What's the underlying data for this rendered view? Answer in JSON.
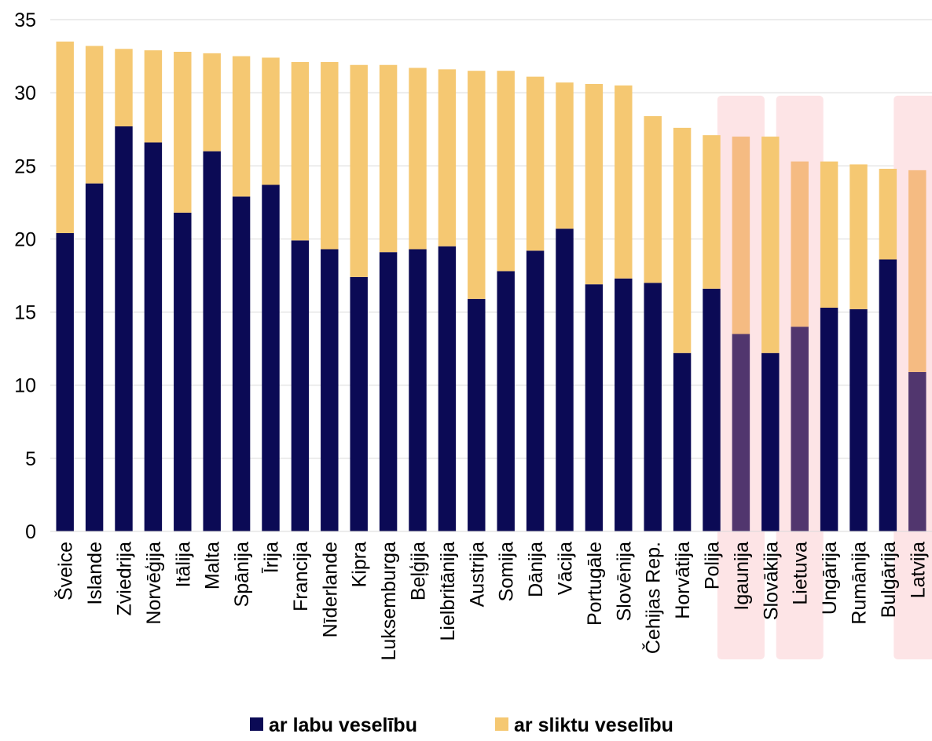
{
  "chart_data": {
    "type": "bar",
    "stacked": true,
    "title": "",
    "xlabel": "",
    "ylabel": "",
    "ylim": [
      0,
      35
    ],
    "yticks": [
      0,
      5,
      10,
      15,
      20,
      25,
      30,
      35
    ],
    "grid": "horizontal",
    "legend_position": "bottom",
    "categories": [
      "Šveice",
      "Islande",
      "Zviedrija",
      "Norvēģija",
      "Itālija",
      "Malta",
      "Spānija",
      "Īrija",
      "Francija",
      "Nīderlande",
      "Kipra",
      "Luksemburga",
      "Beļģija",
      "Lielbritānija",
      "Austrija",
      "Somija",
      "Dānija",
      "Vācija",
      "Portugāle",
      "Slovēnija",
      "Čehijas Rep.",
      "Horvātija",
      "Polija",
      "Igaunija",
      "Slovākija",
      "Lietuva",
      "Ungārija",
      "Rumānija",
      "Bulgārija",
      "Latvija"
    ],
    "highlighted": [
      "Igaunija",
      "Lietuva",
      "Latvija"
    ],
    "series": [
      {
        "name": "ar labu veselību",
        "color": "#0b0a55",
        "values": [
          20.4,
          23.8,
          27.7,
          26.6,
          21.8,
          26.0,
          22.9,
          23.7,
          19.9,
          19.3,
          17.4,
          19.1,
          19.3,
          19.5,
          15.9,
          17.8,
          19.2,
          20.7,
          16.9,
          17.3,
          17.0,
          12.2,
          16.6,
          13.5,
          12.2,
          14.0,
          15.3,
          15.2,
          18.6,
          10.9
        ]
      },
      {
        "name": "ar sliktu veselību",
        "color": "#f5c872",
        "values": [
          13.1,
          9.4,
          5.3,
          6.3,
          11.0,
          6.7,
          9.6,
          8.7,
          12.2,
          12.8,
          14.5,
          12.8,
          12.4,
          12.1,
          15.6,
          13.7,
          11.9,
          10.0,
          13.7,
          13.2,
          11.4,
          15.4,
          10.5,
          13.5,
          14.8,
          11.3,
          10.0,
          9.9,
          6.2,
          13.8
        ]
      }
    ]
  }
}
